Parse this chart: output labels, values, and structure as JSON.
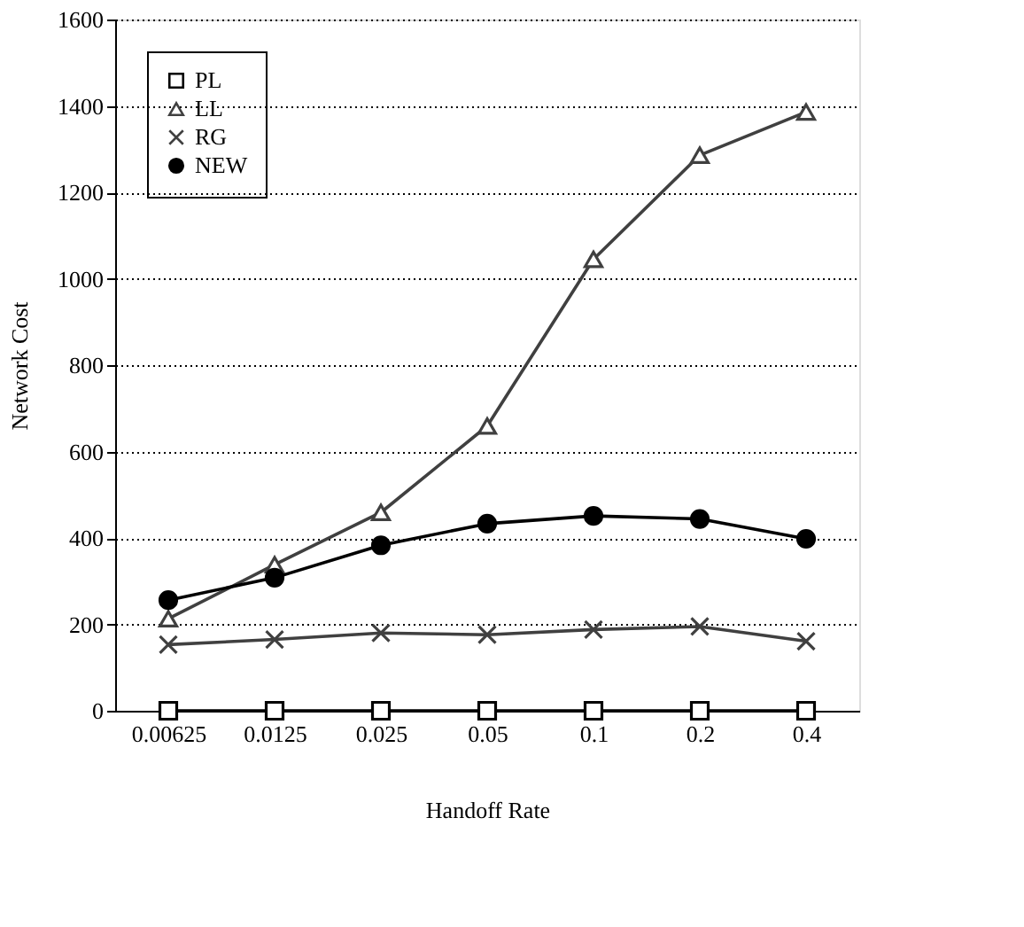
{
  "chart_data": {
    "type": "line",
    "xlabel": "Handoff Rate",
    "ylabel": "Network Cost",
    "categories": [
      "0.00625",
      "0.0125",
      "0.025",
      "0.05",
      "0.1",
      "0.2",
      "0.4"
    ],
    "series": [
      {
        "name": "PL",
        "color": "#000000",
        "marker": "square",
        "values": [
          0,
          0,
          0,
          0,
          0,
          0,
          0
        ]
      },
      {
        "name": "LL",
        "color": "#404040",
        "marker": "triangle",
        "values": [
          213,
          338,
          459,
          659,
          1045,
          1286,
          1386
        ]
      },
      {
        "name": "RG",
        "color": "#404040",
        "marker": "cross",
        "values": [
          153,
          165,
          180,
          176,
          188,
          195,
          161
        ]
      },
      {
        "name": "NEW",
        "color": "#000000",
        "marker": "circle",
        "values": [
          256,
          308,
          383,
          433,
          451,
          444,
          398
        ]
      }
    ],
    "ylim": [
      0,
      1600
    ],
    "yticks": [
      0,
      200,
      400,
      600,
      800,
      1000,
      1200,
      1400,
      1600
    ],
    "grid": "y",
    "legend": "top left",
    "line_style": "solid"
  }
}
